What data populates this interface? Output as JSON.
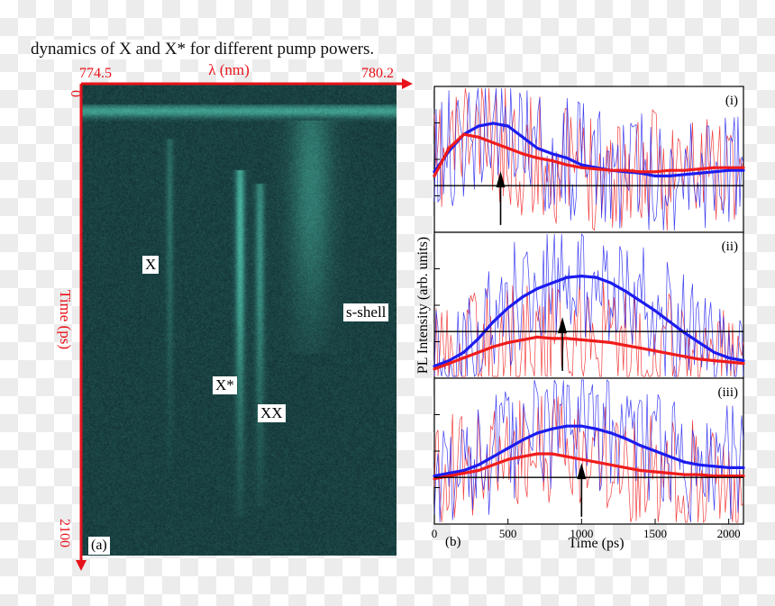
{
  "caption": "dynamics of X and X* for different pump powers.",
  "left_panel": {
    "wavelength_axis": {
      "label": "λ (nm)",
      "min_label": "774.5",
      "max_label": "780.2"
    },
    "time_axis": {
      "label": "Time (ps)",
      "min_label": "0",
      "max_label": "2100"
    },
    "panel_label": "(a)",
    "line_labels": {
      "x": "X",
      "x_star": "X*",
      "xx": "XX",
      "s_shell": "s-shell"
    },
    "colors": {
      "axis": "#e8121a",
      "background": "#0a1c22",
      "glow": "#3fae9a"
    }
  },
  "chart_data": {
    "type": "line",
    "xlabel": "Time (ps)",
    "ylabel": "PL Intensity (arb. units)",
    "panel_label": "(b)",
    "xlim": [
      0,
      2100
    ],
    "xticks": [
      0,
      500,
      1000,
      1500,
      2000
    ],
    "colors": {
      "series_1": "#1c1cf0",
      "series_2": "#f01c1c"
    },
    "subplots": [
      {
        "label": "(i)",
        "arrow_at": 450,
        "x": [
          0,
          100,
          200,
          300,
          400,
          500,
          600,
          700,
          800,
          900,
          1000,
          1100,
          1200,
          1300,
          1400,
          1500,
          1600,
          1700,
          1800,
          1900,
          2000,
          2100
        ],
        "series": [
          {
            "values": [
              0.45,
              0.6,
              0.72,
              0.78,
              0.8,
              0.78,
              0.7,
              0.62,
              0.58,
              0.55,
              0.5,
              0.48,
              0.46,
              0.45,
              0.44,
              0.42,
              0.42,
              0.43,
              0.44,
              0.45,
              0.46,
              0.46
            ]
          },
          {
            "values": [
              0.42,
              0.62,
              0.72,
              0.7,
              0.66,
              0.62,
              0.58,
              0.55,
              0.53,
              0.5,
              0.48,
              0.47,
              0.46,
              0.46,
              0.45,
              0.45,
              0.46,
              0.46,
              0.47,
              0.48,
              0.48,
              0.48
            ]
          }
        ]
      },
      {
        "label": "(ii)",
        "arrow_at": 870,
        "x": [
          0,
          100,
          200,
          300,
          400,
          500,
          600,
          700,
          800,
          900,
          1000,
          1100,
          1200,
          1300,
          1400,
          1500,
          1600,
          1700,
          1800,
          1900,
          2000,
          2100
        ],
        "series": [
          {
            "values": [
              0.1,
              0.14,
              0.2,
              0.3,
              0.42,
              0.52,
              0.6,
              0.66,
              0.7,
              0.74,
              0.75,
              0.74,
              0.7,
              0.64,
              0.57,
              0.5,
              0.42,
              0.34,
              0.27,
              0.2,
              0.16,
              0.14
            ]
          },
          {
            "values": [
              0.08,
              0.12,
              0.16,
              0.2,
              0.24,
              0.27,
              0.29,
              0.31,
              0.3,
              0.3,
              0.29,
              0.28,
              0.27,
              0.25,
              0.23,
              0.21,
              0.19,
              0.17,
              0.15,
              0.14,
              0.13,
              0.12
            ]
          }
        ]
      },
      {
        "label": "(iii)",
        "arrow_at": 1000,
        "x": [
          0,
          100,
          200,
          300,
          400,
          500,
          600,
          700,
          800,
          900,
          1000,
          1100,
          1200,
          1300,
          1400,
          1500,
          1600,
          1700,
          1800,
          1900,
          2000,
          2100
        ],
        "series": [
          {
            "values": [
              0.36,
              0.38,
              0.4,
              0.44,
              0.5,
              0.56,
              0.62,
              0.67,
              0.7,
              0.72,
              0.72,
              0.7,
              0.67,
              0.63,
              0.58,
              0.54,
              0.5,
              0.46,
              0.44,
              0.43,
              0.42,
              0.42
            ]
          },
          {
            "values": [
              0.34,
              0.36,
              0.38,
              0.4,
              0.44,
              0.48,
              0.5,
              0.52,
              0.52,
              0.5,
              0.48,
              0.46,
              0.44,
              0.42,
              0.4,
              0.39,
              0.38,
              0.37,
              0.37,
              0.36,
              0.36,
              0.36
            ]
          }
        ]
      }
    ]
  }
}
